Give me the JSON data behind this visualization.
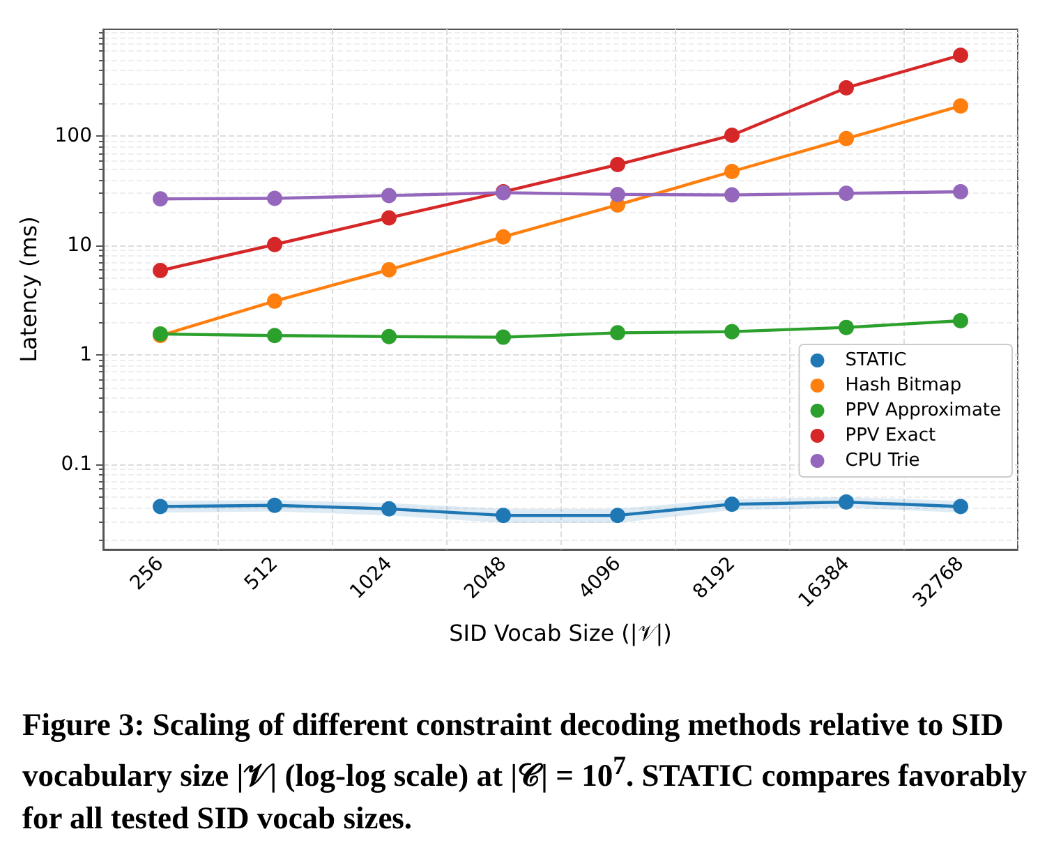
{
  "chart_data": {
    "type": "line",
    "xlabel": "SID Vocab Size (|𝒱|)",
    "ylabel": "Latency (ms)",
    "categories": [
      "256",
      "512",
      "1024",
      "2048",
      "4096",
      "8192",
      "16384",
      "32768"
    ],
    "series": [
      {
        "name": "STATIC",
        "color": "#1f77b4",
        "values": [
          0.041,
          0.042,
          0.039,
          0.034,
          0.034,
          0.043,
          0.045,
          0.041
        ],
        "lower": [
          0.036,
          0.037,
          0.034,
          0.029,
          0.029,
          0.038,
          0.04,
          0.036
        ],
        "upper": [
          0.046,
          0.047,
          0.044,
          0.039,
          0.039,
          0.048,
          0.05,
          0.046
        ]
      },
      {
        "name": "Hash Bitmap",
        "color": "#ff7f0e",
        "values": [
          1.5,
          3.1,
          6.0,
          12,
          23.5,
          47.5,
          95,
          189
        ]
      },
      {
        "name": "PPV Approximate",
        "color": "#2ca02c",
        "values": [
          1.55,
          1.5,
          1.47,
          1.45,
          1.59,
          1.63,
          1.78,
          2.05
        ]
      },
      {
        "name": "PPV Exact",
        "color": "#d62728",
        "values": [
          5.9,
          10.2,
          17.9,
          31,
          55,
          102,
          277,
          550
        ]
      },
      {
        "name": "CPU Trie",
        "color": "#9467bd",
        "values": [
          26.7,
          27,
          28.6,
          30.4,
          29.3,
          29,
          30,
          31
        ]
      }
    ],
    "log": "y",
    "ylim": [
      0.0166,
      950
    ],
    "yticks": [
      0.1,
      1,
      10,
      100
    ],
    "grid": true,
    "legend": "right",
    "marker": "circle",
    "line_style": "solid",
    "annotations": [
      "Figure 3: Scaling of different constraint decoding methods relative to SID vocabulary size |𝒱| (log-log scale) at |𝒞| = 10$^{7}$. STATIC compares favorably for all tested SID vocab sizes."
    ]
  }
}
